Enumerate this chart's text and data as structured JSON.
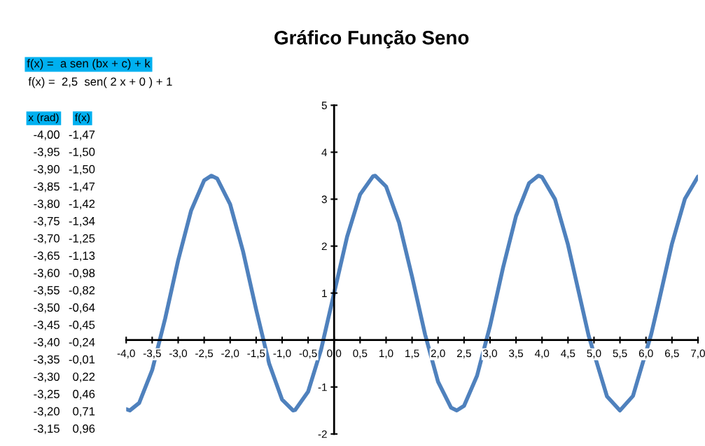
{
  "chart_data": {
    "type": "line",
    "title": "Gráfico Função Seno",
    "annotations": [
      "f(x) =  a sen (bx + c) + k",
      "f(x) =  2,5  sen( 2 x + 0 ) + 1",
      "x (rad)",
      "f(x)",
      "-4,00",
      "-1,47",
      "-3,95",
      "-1,50",
      "-3,90",
      "-1,50",
      "-3,85",
      "-1,47",
      "-3,80",
      "-1,42",
      "-3,75",
      "-1,34",
      "-3,70",
      "-1,25",
      "-3,65",
      "-1,13",
      "-3,60",
      "-0,98",
      "-3,55",
      "-0,82",
      "-3,50",
      "-0,64",
      "-3,45",
      "-0,45",
      "-3,40",
      "-0,24",
      "-3,35",
      "-0,01",
      "-3,30",
      "0,22",
      "-3,25",
      "0,46",
      "-3,20",
      "0,71",
      "-3,15",
      "0,96"
    ],
    "x": [
      -4,
      -3.93,
      -3.75,
      -3.5,
      -3.25,
      -3,
      -2.75,
      -2.5,
      -2.36,
      -2.25,
      -2,
      -1.75,
      -1.5,
      -1.25,
      -1,
      -0.79,
      -0.75,
      -0.5,
      -0.25,
      0,
      0.25,
      0.5,
      0.75,
      0.79,
      1,
      1.25,
      1.5,
      1.75,
      2,
      2.25,
      2.36,
      2.5,
      2.75,
      3,
      3.25,
      3.5,
      3.75,
      3.93,
      4,
      4.25,
      4.5,
      4.75,
      4.9,
      5.25,
      5.5,
      5.75,
      6.1,
      6.25,
      6.5,
      6.75,
      7
    ],
    "series": [
      {
        "color": "#4f81bd",
        "values": [
          -1.47,
          -1.5,
          -1.34,
          -0.64,
          0.46,
          1.7,
          2.76,
          3.4,
          3.5,
          3.44,
          2.89,
          1.88,
          0.65,
          -0.5,
          -1.27,
          -1.5,
          -1.49,
          -1.1,
          -0.2,
          1.0,
          2.2,
          3.1,
          3.49,
          3.5,
          3.27,
          2.5,
          1.35,
          0.12,
          -0.89,
          -1.44,
          -1.5,
          -1.4,
          -0.76,
          0.3,
          1.54,
          2.64,
          3.34,
          3.5,
          3.47,
          3.0,
          2.03,
          0.81,
          0.08,
          -1.2,
          -1.5,
          -1.19,
          0.12,
          0.83,
          2.05,
          3.01,
          3.48
        ]
      }
    ],
    "xlim": [
      -4,
      7
    ],
    "ylim": [
      -2,
      5
    ],
    "xticks": [
      {
        "value": -4,
        "label": "-4,0"
      },
      {
        "value": -3.5,
        "label": "-3,5"
      },
      {
        "value": -3,
        "label": "-3,0"
      },
      {
        "value": -2.5,
        "label": "-2,5"
      },
      {
        "value": -2,
        "label": "-2,0"
      },
      {
        "value": -1.5,
        "label": "-1,5"
      },
      {
        "value": -1,
        "label": "-1,0"
      },
      {
        "value": -0.5,
        "label": "-0,5"
      },
      {
        "value": 0,
        "label": "0,0"
      },
      {
        "value": 0.5,
        "label": "0,5"
      },
      {
        "value": 1,
        "label": "1,0"
      },
      {
        "value": 1.5,
        "label": "1,5"
      },
      {
        "value": 2,
        "label": "2,0"
      },
      {
        "value": 2.5,
        "label": "2,5"
      },
      {
        "value": 3,
        "label": "3,0"
      },
      {
        "value": 3.5,
        "label": "3,5"
      },
      {
        "value": 4,
        "label": "4,0"
      },
      {
        "value": 4.5,
        "label": "4,5"
      },
      {
        "value": 5,
        "label": "5,0"
      },
      {
        "value": 5.5,
        "label": "5,5"
      },
      {
        "value": 6,
        "label": "6,0"
      },
      {
        "value": 6.5,
        "label": "6,5"
      },
      {
        "value": 7,
        "label": "7,0"
      }
    ],
    "yticks": [
      -2,
      -1,
      {
        "value": 0,
        "label": null
      },
      1,
      2,
      3,
      4,
      5
    ],
    "grid": false,
    "legend": false,
    "marker": "none",
    "line_style": "solid"
  }
}
